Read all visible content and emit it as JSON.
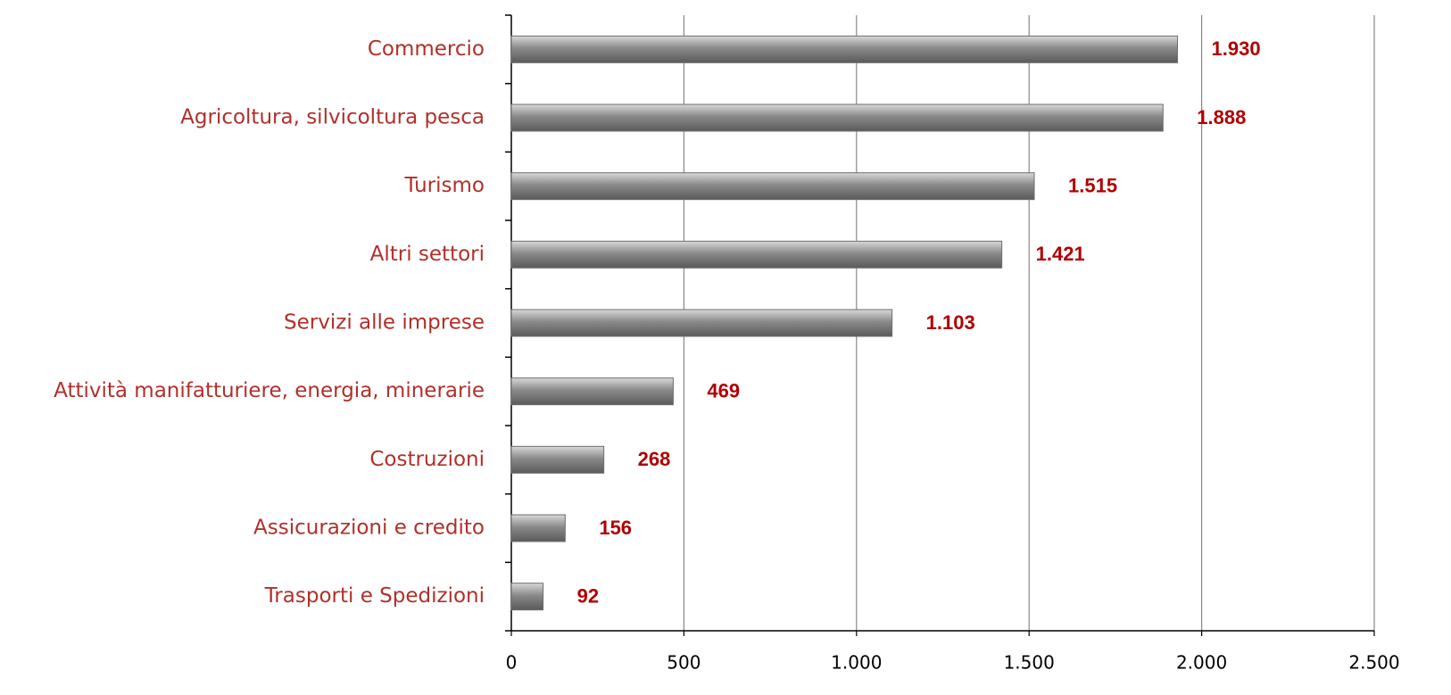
{
  "chart_data": {
    "type": "bar",
    "orientation": "horizontal",
    "categories": [
      "Commercio",
      "Agricoltura, silvicoltura pesca",
      "Turismo",
      "Altri settori",
      "Servizi alle imprese",
      "Attività manifatturiere, energia, minerarie",
      "Costruzioni",
      "Assicurazioni e credito",
      "Trasporti e Spedizioni"
    ],
    "values": [
      1930,
      1888,
      1515,
      1421,
      1103,
      469,
      268,
      156,
      92
    ],
    "value_labels": [
      "1.930",
      "1.888",
      "1.515",
      "1.421",
      "1.103",
      "469",
      "268",
      "156",
      "92"
    ],
    "color": "#8a8a8a",
    "xlim": [
      0,
      2500
    ],
    "xticks": [
      0,
      500,
      {
        "value": 1000,
        "label": "1.000"
      },
      {
        "value": 1500,
        "label": "1.500"
      },
      {
        "value": 2000,
        "label": "2.000"
      },
      {
        "value": 2500,
        "label": "2.500"
      }
    ],
    "grid": true
  }
}
